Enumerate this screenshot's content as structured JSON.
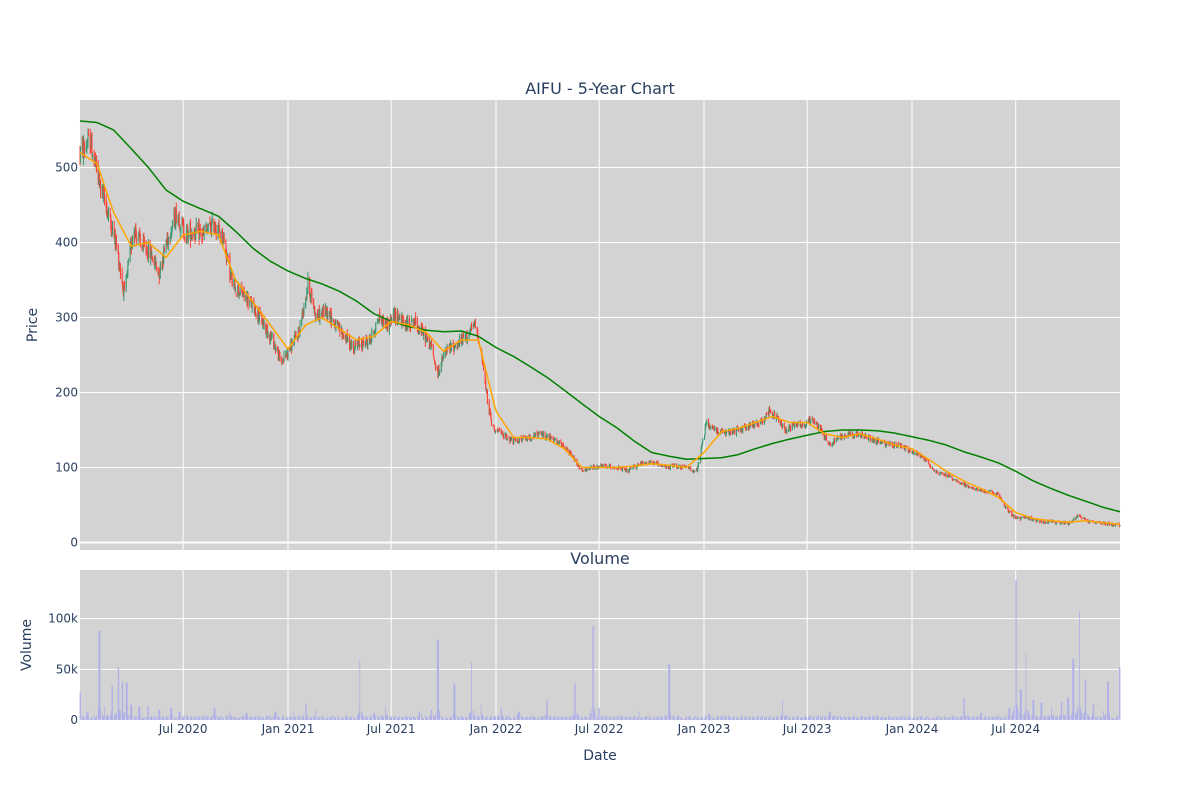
{
  "chart_data": [
    {
      "type": "candlestick",
      "title": "AIFU - 5-Year Chart",
      "ylabel": "Price",
      "ylim": [
        -10,
        590
      ],
      "y_ticks": [
        0,
        100,
        200,
        300,
        400,
        500
      ],
      "xlim": [
        "2020-01-02",
        "2024-12-31"
      ],
      "grid": true,
      "background": "#d3d3d3",
      "colors": {
        "up": "#3d9970",
        "down": "#ff4136",
        "ma_short": "#ffa500",
        "ma_long": "#008000"
      },
      "price_anchors": [
        [
          "2020-01-02",
          520
        ],
        [
          "2020-01-20",
          535
        ],
        [
          "2020-02-05",
          480
        ],
        [
          "2020-02-20",
          440
        ],
        [
          "2020-03-05",
          400
        ],
        [
          "2020-03-20",
          330
        ],
        [
          "2020-04-05",
          420
        ],
        [
          "2020-04-20",
          395
        ],
        [
          "2020-05-05",
          385
        ],
        [
          "2020-05-20",
          360
        ],
        [
          "2020-06-01",
          400
        ],
        [
          "2020-06-20",
          440
        ],
        [
          "2020-07-05",
          410
        ],
        [
          "2020-07-20",
          415
        ],
        [
          "2020-08-05",
          410
        ],
        [
          "2020-08-25",
          425
        ],
        [
          "2020-09-10",
          405
        ],
        [
          "2020-09-25",
          345
        ],
        [
          "2020-10-15",
          330
        ],
        [
          "2020-11-01",
          315
        ],
        [
          "2020-11-20",
          290
        ],
        [
          "2020-12-05",
          270
        ],
        [
          "2020-12-20",
          240
        ],
        [
          "2021-01-05",
          260
        ],
        [
          "2021-01-20",
          280
        ],
        [
          "2021-02-05",
          345
        ],
        [
          "2021-02-20",
          300
        ],
        [
          "2021-03-10",
          310
        ],
        [
          "2021-03-25",
          290
        ],
        [
          "2021-04-10",
          275
        ],
        [
          "2021-04-25",
          260
        ],
        [
          "2021-05-10",
          265
        ],
        [
          "2021-05-25",
          270
        ],
        [
          "2021-06-10",
          300
        ],
        [
          "2021-06-25",
          290
        ],
        [
          "2021-07-10",
          305
        ],
        [
          "2021-07-25",
          290
        ],
        [
          "2021-08-10",
          295
        ],
        [
          "2021-08-25",
          280
        ],
        [
          "2021-09-10",
          260
        ],
        [
          "2021-09-20",
          225
        ],
        [
          "2021-10-05",
          255
        ],
        [
          "2021-10-25",
          265
        ],
        [
          "2021-11-10",
          275
        ],
        [
          "2021-11-25",
          290
        ],
        [
          "2021-12-05",
          260
        ],
        [
          "2021-12-15",
          200
        ],
        [
          "2021-12-25",
          155
        ],
        [
          "2022-01-10",
          145
        ],
        [
          "2022-02-01",
          135
        ],
        [
          "2022-03-01",
          140
        ],
        [
          "2022-03-20",
          145
        ],
        [
          "2022-04-05",
          140
        ],
        [
          "2022-04-25",
          130
        ],
        [
          "2022-05-15",
          115
        ],
        [
          "2022-06-01",
          95
        ],
        [
          "2022-06-20",
          100
        ],
        [
          "2022-07-10",
          102
        ],
        [
          "2022-08-01",
          100
        ],
        [
          "2022-08-20",
          95
        ],
        [
          "2022-09-10",
          105
        ],
        [
          "2022-10-01",
          108
        ],
        [
          "2022-10-20",
          100
        ],
        [
          "2022-11-10",
          102
        ],
        [
          "2022-12-01",
          100
        ],
        [
          "2022-12-20",
          95
        ],
        [
          "2023-01-05",
          160
        ],
        [
          "2023-01-20",
          150
        ],
        [
          "2023-02-10",
          145
        ],
        [
          "2023-03-01",
          150
        ],
        [
          "2023-03-20",
          155
        ],
        [
          "2023-04-10",
          160
        ],
        [
          "2023-04-25",
          175
        ],
        [
          "2023-05-10",
          165
        ],
        [
          "2023-05-25",
          150
        ],
        [
          "2023-06-10",
          160
        ],
        [
          "2023-06-25",
          155
        ],
        [
          "2023-07-10",
          165
        ],
        [
          "2023-07-25",
          150
        ],
        [
          "2023-08-10",
          130
        ],
        [
          "2023-08-25",
          140
        ],
        [
          "2023-09-10",
          145
        ],
        [
          "2023-09-25",
          145
        ],
        [
          "2023-10-15",
          140
        ],
        [
          "2023-11-01",
          135
        ],
        [
          "2023-11-20",
          130
        ],
        [
          "2023-12-10",
          130
        ],
        [
          "2024-01-01",
          120
        ],
        [
          "2024-01-20",
          115
        ],
        [
          "2024-02-10",
          95
        ],
        [
          "2024-03-01",
          90
        ],
        [
          "2024-03-25",
          80
        ],
        [
          "2024-04-15",
          72
        ],
        [
          "2024-05-10",
          68
        ],
        [
          "2024-05-30",
          65
        ],
        [
          "2024-06-15",
          45
        ],
        [
          "2024-07-01",
          32
        ],
        [
          "2024-07-20",
          33
        ],
        [
          "2024-08-15",
          28
        ],
        [
          "2024-09-10",
          27
        ],
        [
          "2024-10-05",
          26
        ],
        [
          "2024-10-20",
          37
        ],
        [
          "2024-11-05",
          28
        ],
        [
          "2024-12-01",
          26
        ],
        [
          "2024-12-31",
          23
        ]
      ],
      "ma_short_anchors": [
        [
          "2020-01-02",
          520
        ],
        [
          "2020-02-01",
          505
        ],
        [
          "2020-03-01",
          440
        ],
        [
          "2020-04-01",
          395
        ],
        [
          "2020-05-01",
          400
        ],
        [
          "2020-06-01",
          380
        ],
        [
          "2020-07-01",
          410
        ],
        [
          "2020-08-01",
          415
        ],
        [
          "2020-09-01",
          410
        ],
        [
          "2020-10-01",
          350
        ],
        [
          "2020-11-01",
          320
        ],
        [
          "2020-12-01",
          290
        ],
        [
          "2021-01-01",
          258
        ],
        [
          "2021-02-01",
          290
        ],
        [
          "2021-03-01",
          300
        ],
        [
          "2021-04-01",
          285
        ],
        [
          "2021-05-01",
          270
        ],
        [
          "2021-06-01",
          275
        ],
        [
          "2021-07-01",
          295
        ],
        [
          "2021-08-01",
          290
        ],
        [
          "2021-09-01",
          280
        ],
        [
          "2021-10-01",
          255
        ],
        [
          "2021-11-01",
          270
        ],
        [
          "2021-12-01",
          270
        ],
        [
          "2022-01-01",
          175
        ],
        [
          "2022-02-01",
          140
        ],
        [
          "2022-03-01",
          140
        ],
        [
          "2022-04-01",
          138
        ],
        [
          "2022-05-01",
          125
        ],
        [
          "2022-06-01",
          100
        ],
        [
          "2022-07-01",
          100
        ],
        [
          "2022-08-01",
          100
        ],
        [
          "2022-09-01",
          102
        ],
        [
          "2022-10-01",
          105
        ],
        [
          "2022-11-01",
          103
        ],
        [
          "2022-12-01",
          100
        ],
        [
          "2023-01-01",
          120
        ],
        [
          "2023-02-01",
          148
        ],
        [
          "2023-03-01",
          152
        ],
        [
          "2023-04-01",
          160
        ],
        [
          "2023-05-01",
          168
        ],
        [
          "2023-06-01",
          160
        ],
        [
          "2023-07-01",
          160
        ],
        [
          "2023-08-01",
          145
        ],
        [
          "2023-09-01",
          140
        ],
        [
          "2023-10-01",
          145
        ],
        [
          "2023-11-01",
          138
        ],
        [
          "2023-12-01",
          130
        ],
        [
          "2024-01-01",
          125
        ],
        [
          "2024-02-01",
          110
        ],
        [
          "2024-03-01",
          95
        ],
        [
          "2024-04-01",
          82
        ],
        [
          "2024-05-01",
          72
        ],
        [
          "2024-06-01",
          60
        ],
        [
          "2024-07-01",
          40
        ],
        [
          "2024-08-01",
          32
        ],
        [
          "2024-09-01",
          29
        ],
        [
          "2024-10-01",
          27
        ],
        [
          "2024-11-01",
          29
        ],
        [
          "2024-12-31",
          24
        ]
      ],
      "ma_long_anchors": [
        [
          "2020-01-02",
          562
        ],
        [
          "2020-02-01",
          560
        ],
        [
          "2020-03-01",
          550
        ],
        [
          "2020-04-01",
          525
        ],
        [
          "2020-05-01",
          500
        ],
        [
          "2020-06-01",
          470
        ],
        [
          "2020-07-01",
          455
        ],
        [
          "2020-08-01",
          445
        ],
        [
          "2020-09-01",
          435
        ],
        [
          "2020-10-01",
          415
        ],
        [
          "2020-11-01",
          392
        ],
        [
          "2020-12-01",
          375
        ],
        [
          "2021-01-01",
          362
        ],
        [
          "2021-02-01",
          352
        ],
        [
          "2021-03-01",
          345
        ],
        [
          "2021-04-01",
          335
        ],
        [
          "2021-05-01",
          322
        ],
        [
          "2021-06-01",
          305
        ],
        [
          "2021-07-01",
          295
        ],
        [
          "2021-08-01",
          288
        ],
        [
          "2021-09-01",
          283
        ],
        [
          "2021-10-01",
          281
        ],
        [
          "2021-11-01",
          282
        ],
        [
          "2021-12-01",
          275
        ],
        [
          "2022-01-01",
          260
        ],
        [
          "2022-02-01",
          248
        ],
        [
          "2022-03-01",
          235
        ],
        [
          "2022-04-01",
          220
        ],
        [
          "2022-05-01",
          203
        ],
        [
          "2022-06-01",
          185
        ],
        [
          "2022-07-01",
          168
        ],
        [
          "2022-08-01",
          153
        ],
        [
          "2022-09-01",
          135
        ],
        [
          "2022-10-01",
          120
        ],
        [
          "2022-11-01",
          115
        ],
        [
          "2022-12-01",
          111
        ],
        [
          "2023-01-01",
          112
        ],
        [
          "2023-02-01",
          113
        ],
        [
          "2023-03-01",
          117
        ],
        [
          "2023-04-01",
          125
        ],
        [
          "2023-05-01",
          132
        ],
        [
          "2023-06-01",
          138
        ],
        [
          "2023-07-01",
          143
        ],
        [
          "2023-08-01",
          148
        ],
        [
          "2023-09-01",
          150
        ],
        [
          "2023-10-01",
          150
        ],
        [
          "2023-11-01",
          149
        ],
        [
          "2023-12-01",
          146
        ],
        [
          "2024-01-01",
          141
        ],
        [
          "2024-02-01",
          136
        ],
        [
          "2024-03-01",
          130
        ],
        [
          "2024-04-01",
          121
        ],
        [
          "2024-05-01",
          114
        ],
        [
          "2024-06-01",
          106
        ],
        [
          "2024-07-01",
          95
        ],
        [
          "2024-08-01",
          82
        ],
        [
          "2024-09-01",
          72
        ],
        [
          "2024-10-01",
          63
        ],
        [
          "2024-11-01",
          55
        ],
        [
          "2024-12-01",
          47
        ],
        [
          "2024-12-31",
          41
        ]
      ]
    },
    {
      "type": "bar",
      "title": "Volume",
      "xlabel": "Date",
      "ylabel": "Volume",
      "ylim": [
        0,
        148000
      ],
      "y_ticks": [
        0,
        50000,
        100000
      ],
      "y_tick_labels": [
        "0",
        "50k",
        "100k"
      ],
      "x_ticks": [
        "2020-07-01",
        "2021-01-01",
        "2021-07-01",
        "2022-01-01",
        "2022-07-01",
        "2023-01-01",
        "2023-07-01",
        "2024-01-01",
        "2024-07-01"
      ],
      "x_tick_labels": [
        "Jul 2020",
        "Jan 2021",
        "Jul 2021",
        "Jan 2022",
        "Jul 2022",
        "Jan 2023",
        "Jul 2023",
        "Jan 2024",
        "Jul 2024"
      ],
      "grid": true,
      "background": "#d3d3d3",
      "bar_color": "#b0b0e8",
      "baseline_volume": 3000,
      "spikes": [
        [
          "2020-01-03",
          27000
        ],
        [
          "2020-01-15",
          8000
        ],
        [
          "2020-02-05",
          88000
        ],
        [
          "2020-02-15",
          14000
        ],
        [
          "2020-02-28",
          34000
        ],
        [
          "2020-03-09",
          52000
        ],
        [
          "2020-03-16",
          38000
        ],
        [
          "2020-03-24",
          37000
        ],
        [
          "2020-04-01",
          15000
        ],
        [
          "2020-04-15",
          13000
        ],
        [
          "2020-05-01",
          14000
        ],
        [
          "2020-05-20",
          10000
        ],
        [
          "2020-06-10",
          12000
        ],
        [
          "2020-06-25",
          8000
        ],
        [
          "2020-08-25",
          12000
        ],
        [
          "2020-09-20",
          9000
        ],
        [
          "2020-10-20",
          7000
        ],
        [
          "2020-12-10",
          8000
        ],
        [
          "2021-01-10",
          9000
        ],
        [
          "2021-02-01",
          16000
        ],
        [
          "2021-02-20",
          10000
        ],
        [
          "2021-05-08",
          60000
        ],
        [
          "2021-06-01",
          7000
        ],
        [
          "2021-06-20",
          14000
        ],
        [
          "2021-08-20",
          8000
        ],
        [
          "2021-09-10",
          10000
        ],
        [
          "2021-09-21",
          79000
        ],
        [
          "2021-10-20",
          36000
        ],
        [
          "2021-11-20",
          57000
        ],
        [
          "2021-12-05",
          15000
        ],
        [
          "2022-01-10",
          12000
        ],
        [
          "2022-02-10",
          8000
        ],
        [
          "2022-04-01",
          19000
        ],
        [
          "2022-05-20",
          36000
        ],
        [
          "2022-06-20",
          93000
        ],
        [
          "2022-07-01",
          12000
        ],
        [
          "2022-09-10",
          8000
        ],
        [
          "2022-11-01",
          55000
        ],
        [
          "2023-01-10",
          6000
        ],
        [
          "2023-05-20",
          20000
        ],
        [
          "2023-08-10",
          8000
        ],
        [
          "2024-04-01",
          22000
        ],
        [
          "2024-05-01",
          7000
        ],
        [
          "2024-06-20",
          12000
        ],
        [
          "2024-07-01",
          138000
        ],
        [
          "2024-07-10",
          30000
        ],
        [
          "2024-07-20",
          66000
        ],
        [
          "2024-08-01",
          20000
        ],
        [
          "2024-08-15",
          17000
        ],
        [
          "2024-09-01",
          13000
        ],
        [
          "2024-09-20",
          18000
        ],
        [
          "2024-10-01",
          22000
        ],
        [
          "2024-10-10",
          60000
        ],
        [
          "2024-10-20",
          108000
        ],
        [
          "2024-11-01",
          40000
        ],
        [
          "2024-11-15",
          15000
        ],
        [
          "2024-12-01",
          9000
        ],
        [
          "2024-12-10",
          38000
        ],
        [
          "2024-12-31",
          52000
        ]
      ]
    }
  ]
}
